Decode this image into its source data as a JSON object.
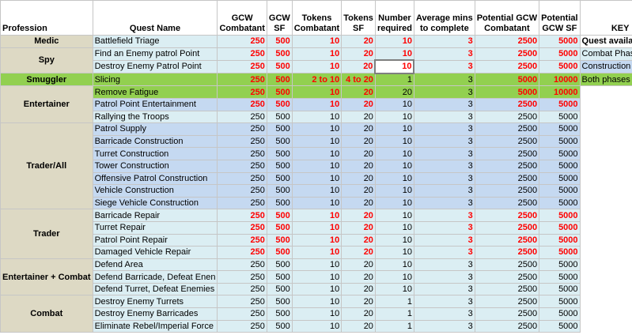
{
  "columns": {
    "profession": "Profession",
    "quest_name": "Quest Name",
    "gcw_combatant": [
      "GCW",
      "Combatant"
    ],
    "gcw_sf": [
      "GCW",
      "SF"
    ],
    "tokens_combatant": [
      "Tokens",
      "Combatant"
    ],
    "tokens_sf": [
      "Tokens",
      "SF"
    ],
    "number_required": [
      "Number",
      "required"
    ],
    "avg_mins": [
      "Average mins",
      "to complete"
    ],
    "potential_combatant": [
      "Potential GCW",
      "Combatant"
    ],
    "potential_sf": [
      "Potential",
      "GCW SF"
    ],
    "key": "KEY"
  },
  "key": [
    {
      "label": "Quest available in:",
      "bold": true,
      "bg": "#ffffff"
    },
    {
      "label": "Combat Phase",
      "bold": false,
      "bg": "#dbeef3"
    },
    {
      "label": "Construction Phase",
      "bold": false,
      "bg": "#c5d9f1"
    },
    {
      "label": "Both phases",
      "bold": false,
      "bg": "#92d050"
    }
  ],
  "colors": {
    "combat_phase": "#dbeef3",
    "construction_phase": "#c5d9f1",
    "both_phases": "#92d050",
    "profession_bg": "#ddd9c4",
    "highlight_red": "#ff0000"
  },
  "groups": [
    {
      "profession": "Medic",
      "rows": [
        {
          "quest": "Battlefield Triage",
          "gc": "250",
          "gs": "500",
          "tc": "10",
          "ts": "20",
          "nr": "10",
          "am": "3",
          "pc": "2500",
          "ps": "5000",
          "phase": "combat",
          "red": true
        }
      ]
    },
    {
      "profession": "Spy",
      "rows": [
        {
          "quest": "Find an Enemy patrol Point",
          "gc": "250",
          "gs": "500",
          "tc": "10",
          "ts": "20",
          "nr": "10",
          "am": "3",
          "pc": "2500",
          "ps": "5000",
          "phase": "combat",
          "red": true
        },
        {
          "quest": "Destroy Enemy Patrol Point",
          "gc": "250",
          "gs": "500",
          "tc": "10",
          "ts": "20",
          "nr": "10",
          "am": "3",
          "pc": "2500",
          "ps": "5000",
          "phase": "combat",
          "red": true,
          "selected": true
        }
      ]
    },
    {
      "profession": "Smuggler",
      "rows": [
        {
          "quest": "Slicing",
          "gc": "250",
          "gs": "500",
          "tc": "2 to 10",
          "ts": "4 to 20",
          "nr": "1",
          "am": "3",
          "pc": "5000",
          "ps": "10000",
          "phase": "both",
          "red": true,
          "plain_nr": true
        }
      ]
    },
    {
      "profession": "Entertainer",
      "rows": [
        {
          "quest": "Remove Fatigue",
          "gc": "250",
          "gs": "500",
          "tc": "10",
          "ts": "20",
          "nr": "20",
          "am": "3",
          "pc": "5000",
          "ps": "10000",
          "phase": "both",
          "red": true,
          "plain_nr": true
        },
        {
          "quest": "Patrol Point Entertainment",
          "gc": "250",
          "gs": "500",
          "tc": "10",
          "ts": "20",
          "nr": "10",
          "am": "3",
          "pc": "2500",
          "ps": "5000",
          "phase": "construction",
          "red": true,
          "plain_nr": true
        },
        {
          "quest": "Rallying the Troops",
          "gc": "250",
          "gs": "500",
          "tc": "10",
          "ts": "20",
          "nr": "10",
          "am": "3",
          "pc": "2500",
          "ps": "5000",
          "phase": "combat",
          "red": false
        }
      ]
    },
    {
      "profession": "Trader/All",
      "rows": [
        {
          "quest": "Patrol Supply",
          "gc": "250",
          "gs": "500",
          "tc": "10",
          "ts": "20",
          "nr": "10",
          "am": "3",
          "pc": "2500",
          "ps": "5000",
          "phase": "construction",
          "red": false
        },
        {
          "quest": "Barricade Construction",
          "gc": "250",
          "gs": "500",
          "tc": "10",
          "ts": "20",
          "nr": "10",
          "am": "3",
          "pc": "2500",
          "ps": "5000",
          "phase": "construction",
          "red": false
        },
        {
          "quest": "Turret Construction",
          "gc": "250",
          "gs": "500",
          "tc": "10",
          "ts": "20",
          "nr": "10",
          "am": "3",
          "pc": "2500",
          "ps": "5000",
          "phase": "construction",
          "red": false
        },
        {
          "quest": "Tower Construction",
          "gc": "250",
          "gs": "500",
          "tc": "10",
          "ts": "20",
          "nr": "10",
          "am": "3",
          "pc": "2500",
          "ps": "5000",
          "phase": "construction",
          "red": false
        },
        {
          "quest": "Offensive Patrol Construction",
          "gc": "250",
          "gs": "500",
          "tc": "10",
          "ts": "20",
          "nr": "10",
          "am": "3",
          "pc": "2500",
          "ps": "5000",
          "phase": "construction",
          "red": false
        },
        {
          "quest": "Vehicle Construction",
          "gc": "250",
          "gs": "500",
          "tc": "10",
          "ts": "20",
          "nr": "10",
          "am": "3",
          "pc": "2500",
          "ps": "5000",
          "phase": "construction",
          "red": false
        },
        {
          "quest": "Siege Vehicle Construction",
          "gc": "250",
          "gs": "500",
          "tc": "10",
          "ts": "20",
          "nr": "10",
          "am": "3",
          "pc": "2500",
          "ps": "5000",
          "phase": "construction",
          "red": false
        }
      ]
    },
    {
      "profession": "Trader",
      "rows": [
        {
          "quest": "Barricade Repair",
          "gc": "250",
          "gs": "500",
          "tc": "10",
          "ts": "20",
          "nr": "10",
          "am": "3",
          "pc": "2500",
          "ps": "5000",
          "phase": "combat",
          "red": true,
          "plain_nr": true
        },
        {
          "quest": "Turret Repair",
          "gc": "250",
          "gs": "500",
          "tc": "10",
          "ts": "20",
          "nr": "10",
          "am": "3",
          "pc": "2500",
          "ps": "5000",
          "phase": "combat",
          "red": true,
          "plain_nr": true
        },
        {
          "quest": "Patrol Point Repair",
          "gc": "250",
          "gs": "500",
          "tc": "10",
          "ts": "20",
          "nr": "10",
          "am": "3",
          "pc": "2500",
          "ps": "5000",
          "phase": "combat",
          "red": true,
          "plain_nr": true
        },
        {
          "quest": "Damaged Vehicle Repair",
          "gc": "250",
          "gs": "500",
          "tc": "10",
          "ts": "20",
          "nr": "10",
          "am": "3",
          "pc": "2500",
          "ps": "5000",
          "phase": "combat",
          "red": true,
          "plain_nr": true
        }
      ]
    },
    {
      "profession": "Entertainer + Combat",
      "rows": [
        {
          "quest": "Defend Area",
          "gc": "250",
          "gs": "500",
          "tc": "10",
          "ts": "20",
          "nr": "10",
          "am": "3",
          "pc": "2500",
          "ps": "5000",
          "phase": "combat",
          "red": false
        },
        {
          "quest": "Defend Barricade, Defeat Enen",
          "gc": "250",
          "gs": "500",
          "tc": "10",
          "ts": "20",
          "nr": "10",
          "am": "3",
          "pc": "2500",
          "ps": "5000",
          "phase": "combat",
          "red": false
        },
        {
          "quest": "Defend Turret, Defeat Enemies",
          "gc": "250",
          "gs": "500",
          "tc": "10",
          "ts": "20",
          "nr": "10",
          "am": "3",
          "pc": "2500",
          "ps": "5000",
          "phase": "combat",
          "red": false
        }
      ]
    },
    {
      "profession": "Combat",
      "rows": [
        {
          "quest": "Destroy Enemy Turrets",
          "gc": "250",
          "gs": "500",
          "tc": "10",
          "ts": "20",
          "nr": "1",
          "am": "3",
          "pc": "2500",
          "ps": "5000",
          "phase": "combat",
          "red": false
        },
        {
          "quest": "Destroy Enemy Barricades",
          "gc": "250",
          "gs": "500",
          "tc": "10",
          "ts": "20",
          "nr": "1",
          "am": "3",
          "pc": "2500",
          "ps": "5000",
          "phase": "combat",
          "red": false
        },
        {
          "quest": "Eliminate Rebel/Imperial Force",
          "gc": "250",
          "gs": "500",
          "tc": "10",
          "ts": "20",
          "nr": "1",
          "am": "3",
          "pc": "2500",
          "ps": "5000",
          "phase": "combat",
          "red": false
        }
      ]
    }
  ]
}
